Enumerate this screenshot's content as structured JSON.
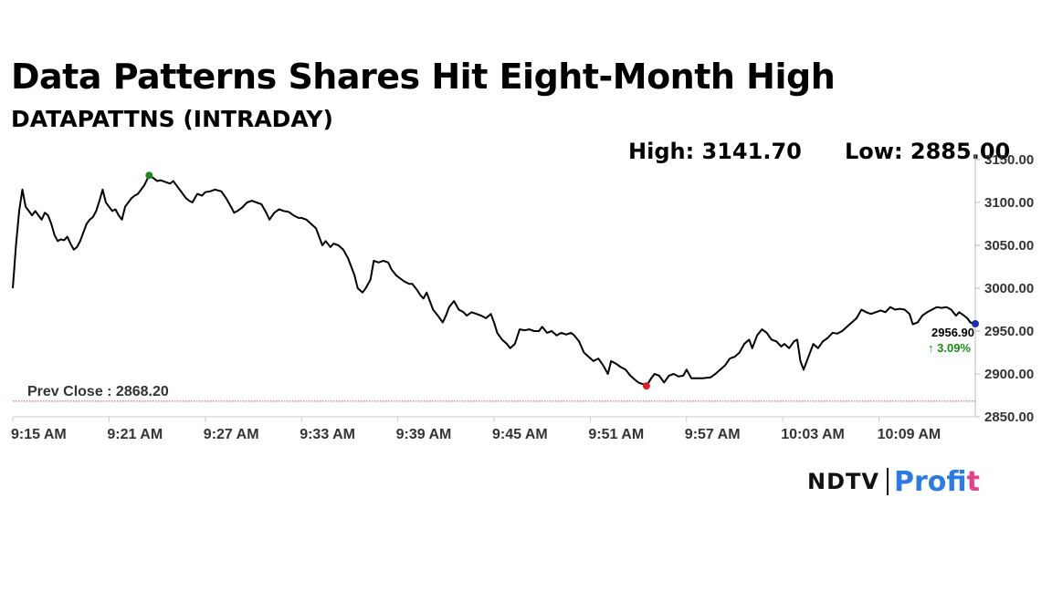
{
  "headline": "Data Patterns Shares Hit Eight-Month High",
  "subheadline": "DATAPATTNS (INTRADAY)",
  "high_label": "High: 3141.70",
  "low_label": "Low: 2885.00",
  "prev_close_label": "Prev Close : 2868.20",
  "last_price_label": "2956.90",
  "change_label": "↑ 3.09%",
  "logo": {
    "ndtv": "NDTV",
    "profit_main": "Prof",
    "profit_accent": "it"
  },
  "colors": {
    "line": "#000000",
    "high_marker": "#1a8a1a",
    "low_marker": "#e02020",
    "last_marker": "#1a2fb0",
    "change": "#1a8a1a",
    "prev_close_line": "#c0504d"
  },
  "chart_data": {
    "type": "line",
    "title": "Data Patterns Shares Hit Eight-Month High",
    "subtitle": "DATAPATTNS (INTRADAY)",
    "xlabel": "",
    "ylabel": "",
    "ylim": [
      2850,
      3150
    ],
    "y_ticks": [
      3150,
      3100,
      3050,
      3000,
      2950,
      2900,
      2850
    ],
    "y_tick_labels": [
      "3150.00",
      "3100.00",
      "3050.00",
      "3000.00",
      "2950.00",
      "2900.00",
      "2850.00"
    ],
    "x_unit": "minutes after 9:15 AM",
    "x_ticks": [
      0,
      6,
      12,
      18,
      24,
      30,
      36,
      42,
      48,
      54
    ],
    "x_tick_labels": [
      "9:15 AM",
      "9:21 AM",
      "9:27 AM",
      "9:33 AM",
      "9:39 AM",
      "9:45 AM",
      "9:51 AM",
      "9:57 AM",
      "10:03 AM",
      "10:09 AM"
    ],
    "xlim": [
      0,
      60
    ],
    "prev_close": 2868.2,
    "high": {
      "x": 8.5,
      "y": 3131.7,
      "value": 3141.7
    },
    "low": {
      "x": 39.5,
      "y": 2886,
      "value": 2885.0
    },
    "last": {
      "x": 60,
      "y": 2958.5,
      "value": 2956.9,
      "change_pct": 3.09
    },
    "series": [
      {
        "values": [
          [
            0,
            3000
          ],
          [
            0.2,
            3050
          ],
          [
            0.4,
            3090
          ],
          [
            0.6,
            3115
          ],
          [
            0.8,
            3095
          ],
          [
            1.0,
            3090
          ],
          [
            1.2,
            3085
          ],
          [
            1.4,
            3090
          ],
          [
            1.6,
            3085
          ],
          [
            1.8,
            3080
          ],
          [
            2.0,
            3088
          ],
          [
            2.2,
            3085
          ],
          [
            2.4,
            3075
          ],
          [
            2.6,
            3062
          ],
          [
            2.8,
            3055
          ],
          [
            3.0,
            3057
          ],
          [
            3.2,
            3056
          ],
          [
            3.4,
            3060
          ],
          [
            3.6,
            3052
          ],
          [
            3.8,
            3045
          ],
          [
            4.0,
            3048
          ],
          [
            4.2,
            3055
          ],
          [
            4.4,
            3065
          ],
          [
            4.6,
            3075
          ],
          [
            4.8,
            3080
          ],
          [
            5.0,
            3083
          ],
          [
            5.2,
            3090
          ],
          [
            5.4,
            3102
          ],
          [
            5.6,
            3115
          ],
          [
            5.8,
            3100
          ],
          [
            6.0,
            3095
          ],
          [
            6.2,
            3090
          ],
          [
            6.4,
            3092
          ],
          [
            6.6,
            3085
          ],
          [
            6.8,
            3080
          ],
          [
            7.0,
            3095
          ],
          [
            7.2,
            3100
          ],
          [
            7.4,
            3105
          ],
          [
            7.6,
            3108
          ],
          [
            7.8,
            3110
          ],
          [
            8.0,
            3115
          ],
          [
            8.2,
            3120
          ],
          [
            8.5,
            3131.7
          ],
          [
            8.8,
            3128
          ],
          [
            9.0,
            3125
          ],
          [
            9.2,
            3126
          ],
          [
            9.5,
            3124
          ],
          [
            9.8,
            3122
          ],
          [
            10.0,
            3125
          ],
          [
            10.2,
            3120
          ],
          [
            10.4,
            3115
          ],
          [
            10.6,
            3110
          ],
          [
            10.8,
            3105
          ],
          [
            11.0,
            3102
          ],
          [
            11.2,
            3100
          ],
          [
            11.5,
            3110
          ],
          [
            11.8,
            3108
          ],
          [
            12.0,
            3112
          ],
          [
            12.3,
            3113
          ],
          [
            12.6,
            3115
          ],
          [
            13.0,
            3113
          ],
          [
            13.3,
            3105
          ],
          [
            13.6,
            3095
          ],
          [
            13.8,
            3088
          ],
          [
            14.0,
            3090
          ],
          [
            14.3,
            3094
          ],
          [
            14.6,
            3100
          ],
          [
            14.9,
            3102
          ],
          [
            15.2,
            3100
          ],
          [
            15.5,
            3098
          ],
          [
            15.8,
            3088
          ],
          [
            16.0,
            3080
          ],
          [
            16.3,
            3088
          ],
          [
            16.6,
            3092
          ],
          [
            16.9,
            3090
          ],
          [
            17.2,
            3089
          ],
          [
            17.5,
            3085
          ],
          [
            17.8,
            3082
          ],
          [
            18.0,
            3082
          ],
          [
            18.3,
            3080
          ],
          [
            18.6,
            3075
          ],
          [
            18.9,
            3070
          ],
          [
            19.1,
            3060
          ],
          [
            19.3,
            3050
          ],
          [
            19.5,
            3055
          ],
          [
            19.8,
            3048
          ],
          [
            20.0,
            3052
          ],
          [
            20.3,
            3050
          ],
          [
            20.6,
            3045
          ],
          [
            20.9,
            3035
          ],
          [
            21.1,
            3025
          ],
          [
            21.3,
            3015
          ],
          [
            21.5,
            3000
          ],
          [
            21.8,
            2995
          ],
          [
            22.0,
            3000
          ],
          [
            22.3,
            3010
          ],
          [
            22.5,
            3032
          ],
          [
            22.8,
            3030
          ],
          [
            23.1,
            3032
          ],
          [
            23.4,
            3030
          ],
          [
            23.6,
            3022
          ],
          [
            23.9,
            3015
          ],
          [
            24.1,
            3012
          ],
          [
            24.4,
            3008
          ],
          [
            24.7,
            3005
          ],
          [
            24.9,
            3005
          ],
          [
            25.2,
            2998
          ],
          [
            25.4,
            2992
          ],
          [
            25.6,
            2988
          ],
          [
            25.8,
            2995
          ],
          [
            26.0,
            2985
          ],
          [
            26.2,
            2975
          ],
          [
            26.5,
            2968
          ],
          [
            26.8,
            2960
          ],
          [
            27.0,
            2968
          ],
          [
            27.2,
            2978
          ],
          [
            27.5,
            2985
          ],
          [
            27.8,
            2975
          ],
          [
            28.1,
            2972
          ],
          [
            28.3,
            2968
          ],
          [
            28.6,
            2972
          ],
          [
            28.9,
            2970
          ],
          [
            29.2,
            2968
          ],
          [
            29.5,
            2965
          ],
          [
            29.8,
            2970
          ],
          [
            30.0,
            2960
          ],
          [
            30.2,
            2948
          ],
          [
            30.5,
            2940
          ],
          [
            30.8,
            2935
          ],
          [
            31.0,
            2930
          ],
          [
            31.3,
            2935
          ],
          [
            31.6,
            2952
          ],
          [
            31.9,
            2951
          ],
          [
            32.2,
            2952
          ],
          [
            32.5,
            2950
          ],
          [
            32.8,
            2950
          ],
          [
            33.0,
            2955
          ],
          [
            33.3,
            2948
          ],
          [
            33.6,
            2950
          ],
          [
            33.9,
            2945
          ],
          [
            34.2,
            2948
          ],
          [
            34.5,
            2946
          ],
          [
            34.8,
            2948
          ],
          [
            35.0,
            2945
          ],
          [
            35.3,
            2938
          ],
          [
            35.6,
            2925
          ],
          [
            35.9,
            2920
          ],
          [
            36.2,
            2915
          ],
          [
            36.5,
            2918
          ],
          [
            36.8,
            2910
          ],
          [
            37.1,
            2900
          ],
          [
            37.3,
            2915
          ],
          [
            37.6,
            2912
          ],
          [
            37.9,
            2908
          ],
          [
            38.2,
            2905
          ],
          [
            38.5,
            2898
          ],
          [
            38.8,
            2893
          ],
          [
            39.0,
            2890
          ],
          [
            39.3,
            2888
          ],
          [
            39.5,
            2886
          ],
          [
            39.8,
            2895
          ],
          [
            40.0,
            2900
          ],
          [
            40.3,
            2898
          ],
          [
            40.6,
            2890
          ],
          [
            40.9,
            2898
          ],
          [
            41.2,
            2900
          ],
          [
            41.5,
            2897
          ],
          [
            41.8,
            2898
          ],
          [
            42.0,
            2905
          ],
          [
            42.3,
            2895
          ],
          [
            42.6,
            2895
          ],
          [
            43.0,
            2895
          ],
          [
            43.5,
            2896
          ],
          [
            43.8,
            2900
          ],
          [
            44.1,
            2905
          ],
          [
            44.4,
            2910
          ],
          [
            44.7,
            2918
          ],
          [
            45.0,
            2920
          ],
          [
            45.3,
            2925
          ],
          [
            45.6,
            2935
          ],
          [
            45.9,
            2940
          ],
          [
            46.1,
            2930
          ],
          [
            46.4,
            2945
          ],
          [
            46.7,
            2952
          ],
          [
            47.0,
            2948
          ],
          [
            47.3,
            2940
          ],
          [
            47.6,
            2938
          ],
          [
            47.9,
            2932
          ],
          [
            48.1,
            2935
          ],
          [
            48.4,
            2930
          ],
          [
            48.7,
            2938
          ],
          [
            48.9,
            2940
          ],
          [
            49.1,
            2915
          ],
          [
            49.3,
            2905
          ],
          [
            49.6,
            2920
          ],
          [
            49.9,
            2935
          ],
          [
            50.2,
            2930
          ],
          [
            50.5,
            2938
          ],
          [
            50.8,
            2942
          ],
          [
            51.1,
            2948
          ],
          [
            51.4,
            2947
          ],
          [
            51.7,
            2950
          ],
          [
            52.0,
            2955
          ],
          [
            52.3,
            2960
          ],
          [
            52.6,
            2965
          ],
          [
            52.9,
            2975
          ],
          [
            53.2,
            2972
          ],
          [
            53.5,
            2970
          ],
          [
            53.8,
            2972
          ],
          [
            54.1,
            2974
          ],
          [
            54.4,
            2972
          ],
          [
            54.7,
            2978
          ],
          [
            55.0,
            2975
          ],
          [
            55.3,
            2976
          ],
          [
            55.6,
            2975
          ],
          [
            55.9,
            2970
          ],
          [
            56.1,
            2958
          ],
          [
            56.4,
            2960
          ],
          [
            56.7,
            2968
          ],
          [
            57.0,
            2972
          ],
          [
            57.3,
            2975
          ],
          [
            57.6,
            2978
          ],
          [
            57.9,
            2977
          ],
          [
            58.2,
            2978
          ],
          [
            58.5,
            2975
          ],
          [
            58.8,
            2968
          ],
          [
            59.0,
            2972
          ],
          [
            59.3,
            2968
          ],
          [
            59.5,
            2965
          ],
          [
            59.7,
            2960
          ],
          [
            60,
            2958.5
          ]
        ]
      }
    ]
  }
}
